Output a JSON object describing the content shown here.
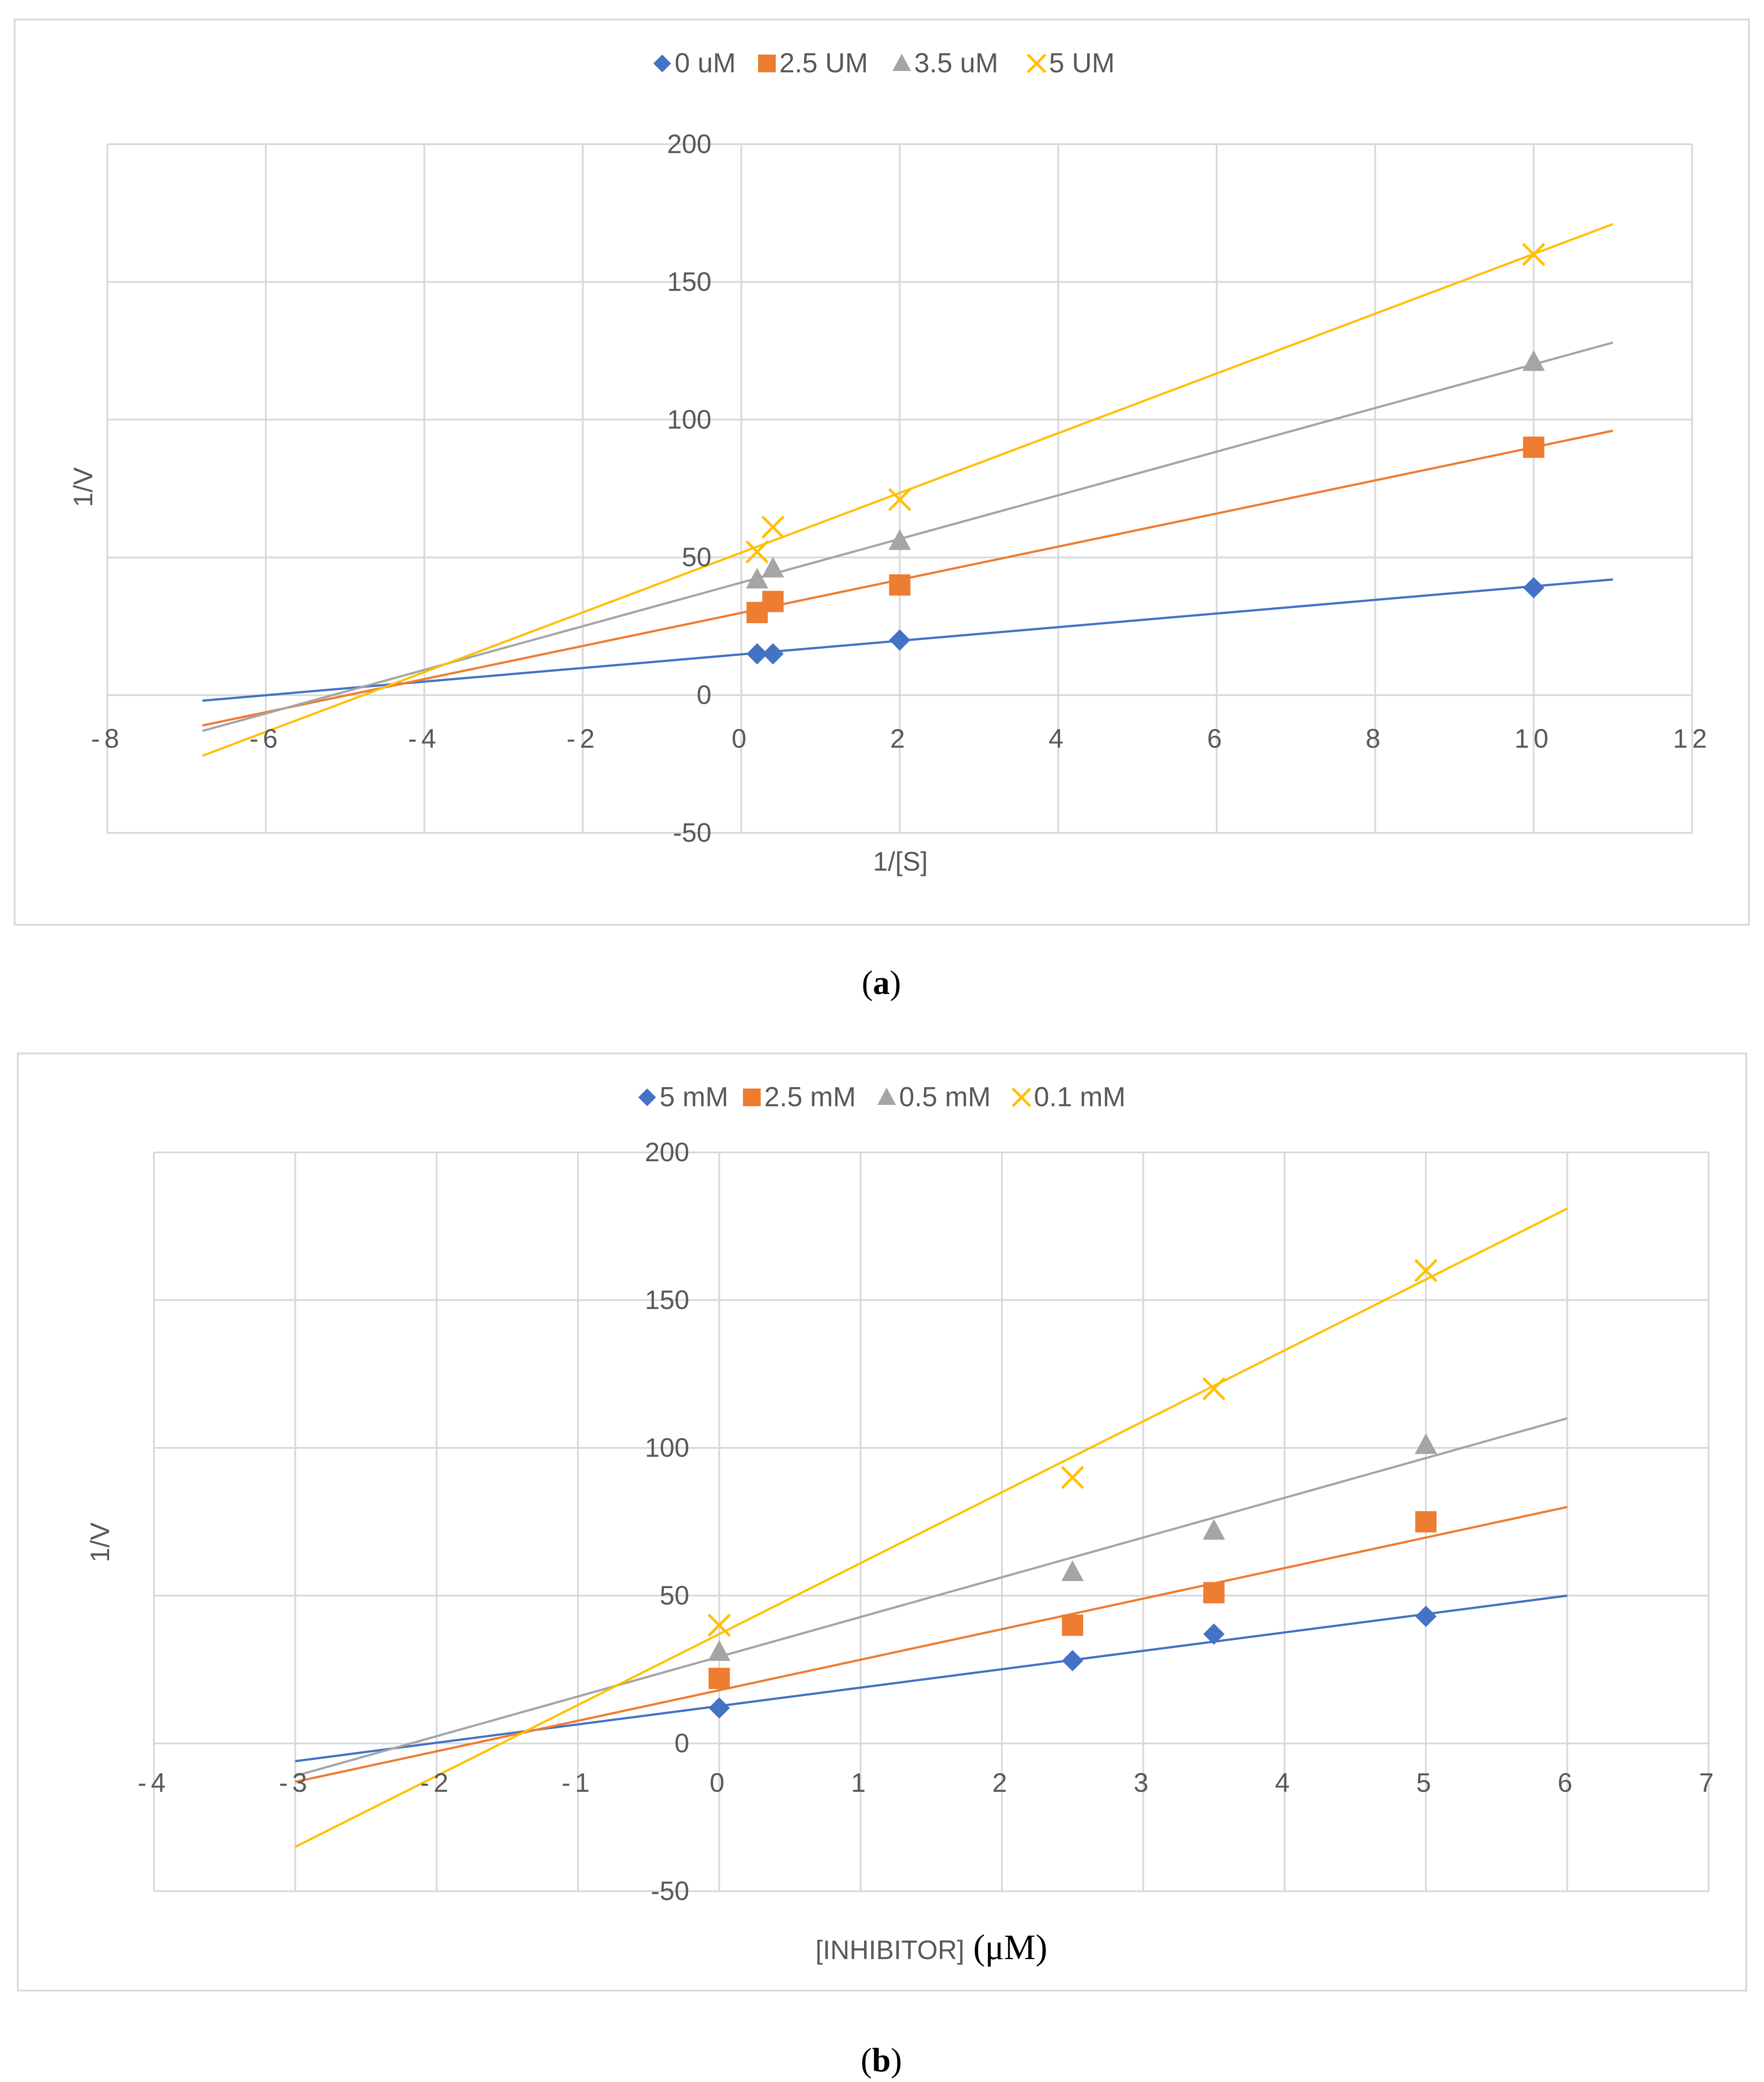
{
  "chart_data": [
    {
      "id": "a",
      "type": "scatter",
      "caption": "(a)",
      "caption_letter": "a",
      "xlabel": "1/[S]",
      "ylabel": "1/V",
      "xlim": [
        -8,
        12
      ],
      "ylim": [
        -50,
        200
      ],
      "xticks": [
        -8,
        -6,
        -4,
        -2,
        0,
        2,
        4,
        6,
        8,
        10,
        12
      ],
      "yticks": [
        -50,
        0,
        50,
        100,
        150,
        200
      ],
      "grid": true,
      "legend_position": "top",
      "series": [
        {
          "name": "0 uM",
          "marker": "diamond",
          "color": "#4472C4",
          "points": [
            [
              0.2,
              15
            ],
            [
              0.4,
              15
            ],
            [
              2,
              20
            ],
            [
              10,
              39
            ]
          ],
          "trend": [
            [
              -6.8,
              -2
            ],
            [
              11,
              42
            ]
          ]
        },
        {
          "name": "2.5 UM",
          "marker": "square",
          "color": "#ED7D31",
          "points": [
            [
              0.2,
              30
            ],
            [
              0.4,
              34
            ],
            [
              2,
              40
            ],
            [
              10,
              90
            ]
          ],
          "trend": [
            [
              -6.8,
              -11
            ],
            [
              11,
              96
            ]
          ]
        },
        {
          "name": "3.5 uM",
          "marker": "triangle",
          "color": "#A5A5A5",
          "points": [
            [
              0.2,
              42
            ],
            [
              0.4,
              46
            ],
            [
              2,
              56
            ],
            [
              10,
              121
            ]
          ],
          "trend": [
            [
              -6.8,
              -13
            ],
            [
              11,
              128
            ]
          ]
        },
        {
          "name": "5 UM",
          "marker": "x",
          "color": "#FFC000",
          "points": [
            [
              0.2,
              52
            ],
            [
              0.4,
              61
            ],
            [
              2,
              71
            ],
            [
              10,
              160
            ]
          ],
          "trend": [
            [
              -6.8,
              -22
            ],
            [
              11,
              171
            ]
          ]
        }
      ]
    },
    {
      "id": "b",
      "type": "scatter",
      "caption": "(b)",
      "caption_letter": "b",
      "xlabel": "[INHIBITOR]",
      "xlabel_unit": "(μM)",
      "ylabel": "1/V",
      "xlim": [
        -4,
        7
      ],
      "ylim": [
        -50,
        200
      ],
      "xticks": [
        -4,
        -3,
        -2,
        -1,
        0,
        1,
        2,
        3,
        4,
        5,
        6,
        7
      ],
      "yticks": [
        -50,
        0,
        50,
        100,
        150,
        200
      ],
      "grid": true,
      "legend_position": "top",
      "series": [
        {
          "name": "5 mM",
          "marker": "diamond",
          "color": "#4472C4",
          "points": [
            [
              0,
              12
            ],
            [
              2.5,
              28
            ],
            [
              3.5,
              37
            ],
            [
              5,
              43
            ]
          ],
          "trend": [
            [
              -3,
              -6
            ],
            [
              6,
              50
            ]
          ]
        },
        {
          "name": "2.5 mM",
          "marker": "square",
          "color": "#ED7D31",
          "points": [
            [
              0,
              22
            ],
            [
              2.5,
              40
            ],
            [
              3.5,
              51
            ],
            [
              5,
              75
            ]
          ],
          "trend": [
            [
              -3,
              -13
            ],
            [
              6,
              80
            ]
          ]
        },
        {
          "name": "0.5 mM",
          "marker": "triangle",
          "color": "#A5A5A5",
          "points": [
            [
              0,
              31
            ],
            [
              2.5,
              58
            ],
            [
              3.5,
              72
            ],
            [
              5,
              101
            ]
          ],
          "trend": [
            [
              -3,
              -11
            ],
            [
              6,
              110
            ]
          ]
        },
        {
          "name": "0.1 mM",
          "marker": "x",
          "color": "#FFC000",
          "points": [
            [
              0,
              40
            ],
            [
              2.5,
              90
            ],
            [
              3.5,
              120
            ],
            [
              5,
              160
            ]
          ],
          "trend": [
            [
              -3,
              -35
            ],
            [
              6,
              181
            ]
          ]
        }
      ]
    }
  ]
}
